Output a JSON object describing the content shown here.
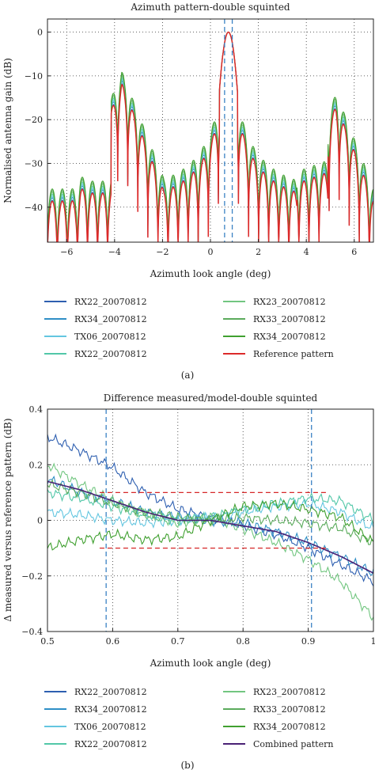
{
  "chart_data": [
    {
      "id": "a",
      "type": "line",
      "title": "Azimuth pattern-double squinted",
      "xlabel": "Azimuth look angle (deg)",
      "ylabel": "Normalised antenna gain (dB)",
      "panel_label": "(a)",
      "xlim": [
        -6.8,
        6.8
      ],
      "ylim": [
        -48,
        3
      ],
      "xticks": [
        -6,
        -4,
        -2,
        0,
        2,
        4,
        6
      ],
      "yticks": [
        0,
        -10,
        -20,
        -30,
        -40
      ],
      "grid": true,
      "vlines": [
        0.59,
        0.91
      ],
      "legend_placement": "below",
      "series": [
        {
          "name": "RX22_20070812",
          "color": "#2e5fb0",
          "offset": 0.0
        },
        {
          "name": "RX34_20070812",
          "color": "#2f8fc6",
          "offset": 0.6
        },
        {
          "name": "TX06_20070812",
          "color": "#64c6e0",
          "offset": 1.0
        },
        {
          "name": "RX22_20070812",
          "color": "#52c7a8",
          "offset": 1.4
        },
        {
          "name": "RX23_20070812",
          "color": "#72c680",
          "offset": 1.8
        },
        {
          "name": "RX33_20070812",
          "color": "#5bab5c",
          "offset": 2.2
        },
        {
          "name": "RX34_20070812",
          "color": "#40a030",
          "offset": 2.6
        },
        {
          "name": "Reference pattern",
          "color": "#dc2a2a",
          "offset": -0.2
        }
      ],
      "main_lobe_peak": {
        "x": 0.75,
        "y": 0
      },
      "grating_lobes": [
        {
          "x": -3.7,
          "y": -11
        },
        {
          "x": 5.25,
          "y": -16
        }
      ]
    },
    {
      "id": "b",
      "type": "line",
      "title": "Difference measured/model-double squinted",
      "xlabel": "Azimuth look angle (deg)",
      "ylabel": "Δ measured versus reference pattern (dB)",
      "panel_label": "(b)",
      "xlim": [
        0.5,
        1.0
      ],
      "ylim": [
        -0.4,
        0.4
      ],
      "xticks": [
        0.5,
        0.6,
        0.7,
        0.8,
        0.9,
        1
      ],
      "ytick_labels": [
        "0.4",
        "0.2",
        "0",
        "−0.2",
        "−0.4"
      ],
      "yticks": [
        0.4,
        0.2,
        0,
        -0.2,
        -0.4
      ],
      "grid": true,
      "vlines": [
        0.59,
        0.905
      ],
      "hlines_dashed_red": [
        {
          "y": 0.1,
          "x": [
            0.58,
            0.93
          ]
        },
        {
          "y": -0.1,
          "x": [
            0.58,
            0.93
          ]
        }
      ],
      "legend_placement": "below",
      "series": [
        {
          "name": "RX22_20070812",
          "color": "#2e5fb0",
          "x": [
            0.5,
            0.55,
            0.6,
            0.65,
            0.7,
            0.75,
            0.8,
            0.85,
            0.9,
            0.95,
            1.0
          ],
          "y": [
            0.3,
            0.25,
            0.19,
            0.1,
            0.04,
            0.01,
            -0.02,
            -0.05,
            -0.1,
            -0.16,
            -0.22
          ]
        },
        {
          "name": "RX34_20070812",
          "color": "#2f8fc6",
          "x": [
            0.5,
            0.55,
            0.6,
            0.65,
            0.7,
            0.75,
            0.8,
            0.85,
            0.9,
            0.95,
            1.0
          ],
          "y": [
            0.15,
            0.1,
            0.07,
            0.03,
            0.01,
            0.0,
            -0.01,
            -0.04,
            -0.08,
            -0.13,
            -0.19
          ]
        },
        {
          "name": "TX06_20070812",
          "color": "#64c6e0",
          "x": [
            0.5,
            0.55,
            0.6,
            0.65,
            0.7,
            0.75,
            0.8,
            0.85,
            0.9,
            0.95,
            1.0
          ],
          "y": [
            0.03,
            0.02,
            0.0,
            -0.01,
            0.0,
            0.01,
            0.03,
            0.05,
            0.06,
            0.03,
            -0.03
          ]
        },
        {
          "name": "RX22_20070812",
          "color": "#52c7a8",
          "x": [
            0.5,
            0.55,
            0.6,
            0.65,
            0.7,
            0.75,
            0.8,
            0.85,
            0.9,
            0.95,
            1.0
          ],
          "y": [
            0.1,
            0.08,
            0.05,
            0.02,
            0.0,
            0.01,
            0.04,
            0.06,
            0.08,
            0.07,
            0.0
          ]
        },
        {
          "name": "RX23_20070812",
          "color": "#72c680",
          "x": [
            0.5,
            0.55,
            0.6,
            0.65,
            0.7,
            0.75,
            0.8,
            0.85,
            0.9,
            0.95,
            1.0
          ],
          "y": [
            0.2,
            0.13,
            0.07,
            0.02,
            -0.01,
            0.01,
            -0.03,
            -0.08,
            -0.14,
            -0.22,
            -0.35
          ]
        },
        {
          "name": "RX33_20070812",
          "color": "#5bab5c",
          "x": [
            0.5,
            0.55,
            0.6,
            0.65,
            0.7,
            0.75,
            0.8,
            0.85,
            0.9,
            0.95,
            1.0
          ],
          "y": [
            0.13,
            0.1,
            0.06,
            0.03,
            0.01,
            0.0,
            0.01,
            0.0,
            -0.01,
            -0.03,
            -0.08
          ]
        },
        {
          "name": "RX34_20070812",
          "color": "#40a030",
          "x": [
            0.5,
            0.55,
            0.6,
            0.65,
            0.7,
            0.75,
            0.8,
            0.85,
            0.9,
            0.95,
            1.0
          ],
          "y": [
            -0.1,
            -0.07,
            -0.05,
            -0.07,
            -0.06,
            0.0,
            0.05,
            0.06,
            0.04,
            0.01,
            -0.08
          ]
        },
        {
          "name": "Combined pattern",
          "color": "#4a2275",
          "x": [
            0.5,
            0.55,
            0.6,
            0.65,
            0.7,
            0.75,
            0.8,
            0.85,
            0.9,
            0.95,
            1.0
          ],
          "y": [
            0.14,
            0.11,
            0.07,
            0.03,
            0.0,
            0.0,
            -0.02,
            -0.04,
            -0.08,
            -0.13,
            -0.19
          ]
        }
      ]
    }
  ]
}
